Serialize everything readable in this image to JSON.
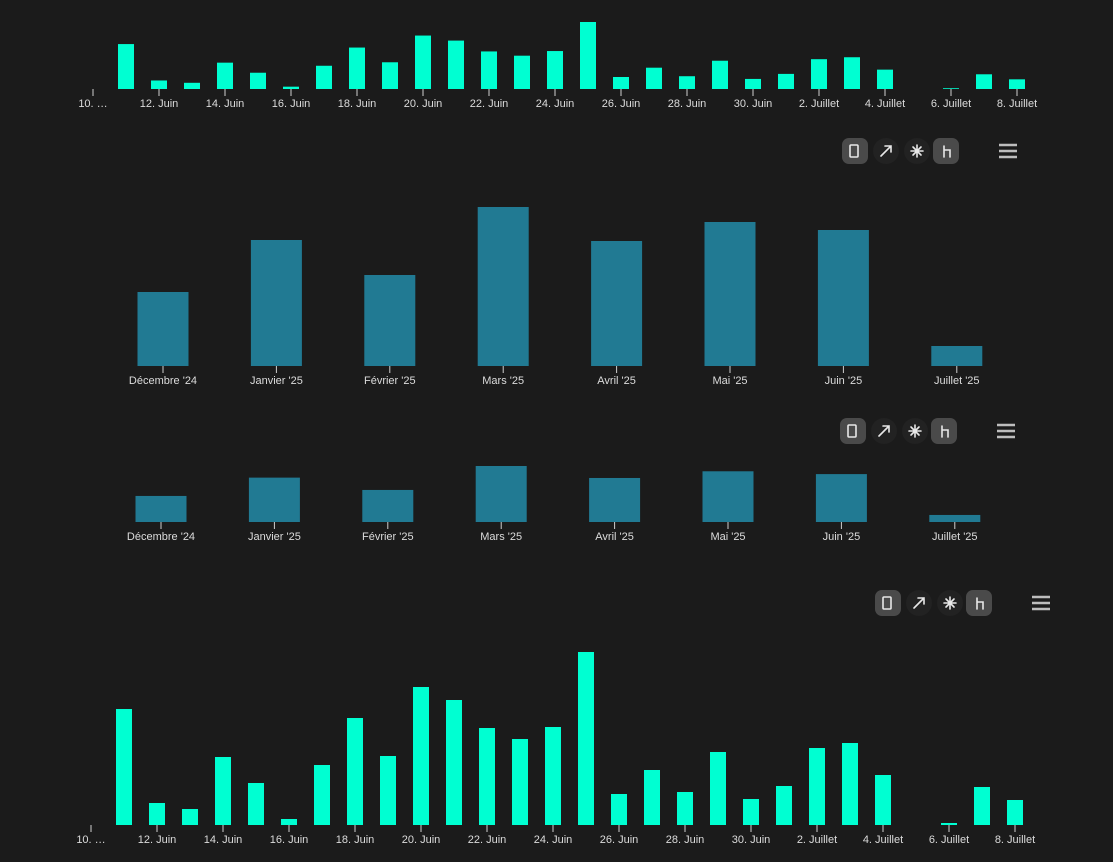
{
  "chart_data": [
    {
      "type": "bar",
      "color": "#00ffd2",
      "categories": [
        "10. …",
        null,
        "12. Juin",
        null,
        "14. Juin",
        null,
        "16. Juin",
        null,
        "18. Juin",
        null,
        "20. Juin",
        null,
        "22. Juin",
        null,
        "24. Juin",
        null,
        "26. Juin",
        null,
        "28. Juin",
        null,
        "30. Juin",
        null,
        "2. Juillet",
        null,
        "4. Juillet",
        null,
        "6. Juillet",
        null,
        "8. Juillet"
      ],
      "values": [
        0,
        116,
        22,
        16,
        68,
        42,
        6,
        60,
        107,
        69,
        138,
        125,
        97,
        86,
        98,
        173,
        31,
        55,
        33,
        73,
        26,
        39,
        77,
        82,
        50,
        0,
        2,
        38,
        25
      ]
    },
    {
      "type": "bar",
      "color": "#217a93",
      "categories": [
        "Décembre '24",
        "Janvier '25",
        "Février '25",
        "Mars '25",
        "Avril '25",
        "Mai '25",
        "Juin '25",
        "Juillet '25"
      ],
      "values": [
        74,
        126,
        91,
        159,
        125,
        144,
        136,
        20
      ]
    },
    {
      "type": "bar",
      "color": "#217a93",
      "categories": [
        "Décembre '24",
        "Janvier '25",
        "Février '25",
        "Mars '25",
        "Avril '25",
        "Mai '25",
        "Juin '25",
        "Juillet '25"
      ],
      "values": [
        74,
        126,
        91,
        159,
        125,
        144,
        136,
        20
      ]
    },
    {
      "type": "bar",
      "color": "#00ffd2",
      "categories": [
        "10. …",
        null,
        "12. Juin",
        null,
        "14. Juin",
        null,
        "16. Juin",
        null,
        "18. Juin",
        null,
        "20. Juin",
        null,
        "22. Juin",
        null,
        "24. Juin",
        null,
        "26. Juin",
        null,
        "28. Juin",
        null,
        "30. Juin",
        null,
        "2. Juillet",
        null,
        "4. Juillet",
        null,
        "6. Juillet",
        null,
        "8. Juillet"
      ],
      "values": [
        0,
        116,
        22,
        16,
        68,
        42,
        6,
        60,
        107,
        69,
        138,
        125,
        97,
        86,
        98,
        173,
        31,
        55,
        33,
        73,
        26,
        39,
        77,
        82,
        50,
        0,
        2,
        38,
        25
      ]
    }
  ]
}
